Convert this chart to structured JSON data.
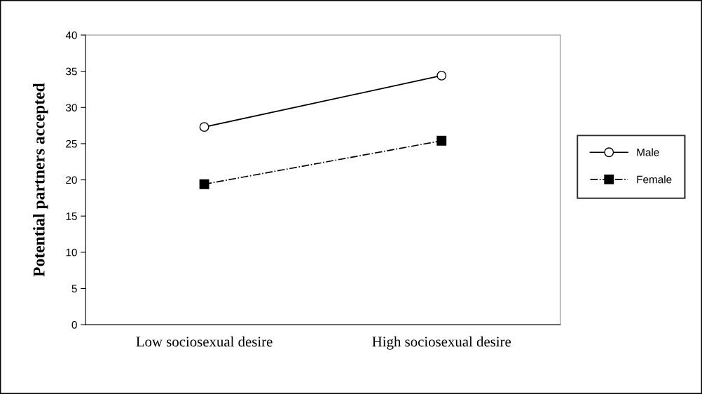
{
  "chart_data": {
    "type": "line",
    "ylabel": "Potential partners accepted",
    "categories": [
      "Low sociosexual desire",
      "High sociosexual desire"
    ],
    "series": [
      {
        "name": "Male",
        "color": "#000000",
        "values": [
          27.3,
          34.4
        ],
        "marker": "circle",
        "line_style": "solid"
      },
      {
        "name": "Female",
        "color": "#000000",
        "values": [
          19.4,
          25.4
        ],
        "marker": "square",
        "line_style": "dashdot"
      }
    ],
    "ylim": [
      0,
      40
    ],
    "yticks": [
      0,
      5,
      10,
      15,
      20,
      25,
      30,
      35,
      40
    ],
    "grid": false,
    "legend": "right"
  }
}
